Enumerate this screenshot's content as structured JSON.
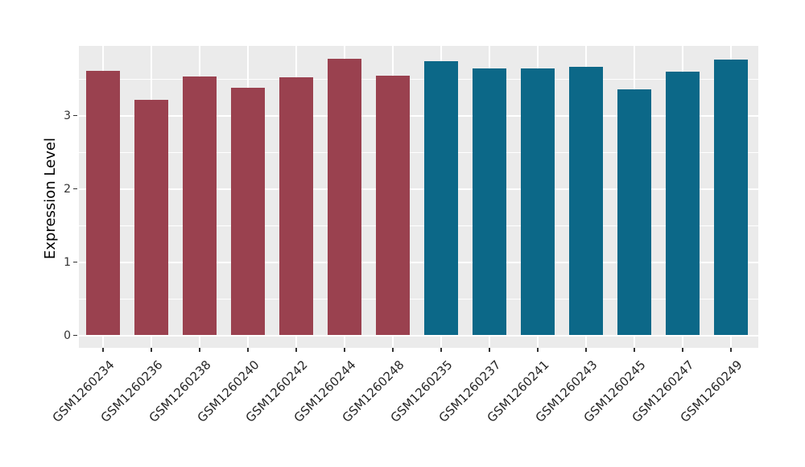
{
  "chart_data": {
    "type": "bar",
    "title": "",
    "xlabel": "",
    "ylabel": "Expression Level",
    "ylim": [
      0,
      3.95
    ],
    "yticks": [
      0,
      1,
      2,
      3
    ],
    "yticks_minor": [
      0.5,
      1.5,
      2.5,
      3.5
    ],
    "grid": "horizontal major+minor, vertical major at category centers",
    "legend_position": "none",
    "categories": [
      "GSM1260234",
      "GSM1260236",
      "GSM1260238",
      "GSM1260240",
      "GSM1260242",
      "GSM1260244",
      "GSM1260248",
      "GSM1260235",
      "GSM1260237",
      "GSM1260241",
      "GSM1260243",
      "GSM1260245",
      "GSM1260247",
      "GSM1260249"
    ],
    "values": [
      3.61,
      3.21,
      3.53,
      3.38,
      3.52,
      3.77,
      3.54,
      3.74,
      3.64,
      3.64,
      3.66,
      3.36,
      3.6,
      3.76
    ],
    "bar_groups": [
      "group1",
      "group1",
      "group1",
      "group1",
      "group1",
      "group1",
      "group1",
      "group2",
      "group2",
      "group2",
      "group2",
      "group2",
      "group2",
      "group2"
    ],
    "group_colors": {
      "group1": "#9A414F",
      "group2": "#0C6888"
    },
    "colors": {
      "figure_background": "#FFFFFF",
      "panel_background": "#EBEBEB",
      "grid": "#FFFFFF",
      "axis_text": "#333333",
      "axis_title": "#000000"
    }
  }
}
